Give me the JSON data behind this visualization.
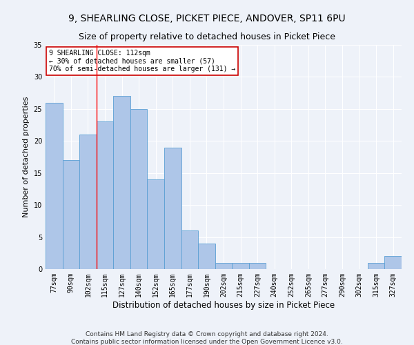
{
  "title1": "9, SHEARLING CLOSE, PICKET PIECE, ANDOVER, SP11 6PU",
  "title2": "Size of property relative to detached houses in Picket Piece",
  "xlabel": "Distribution of detached houses by size in Picket Piece",
  "ylabel": "Number of detached properties",
  "footnote1": "Contains HM Land Registry data © Crown copyright and database right 2024.",
  "footnote2": "Contains public sector information licensed under the Open Government Licence v3.0.",
  "categories": [
    "77sqm",
    "90sqm",
    "102sqm",
    "115sqm",
    "127sqm",
    "140sqm",
    "152sqm",
    "165sqm",
    "177sqm",
    "190sqm",
    "202sqm",
    "215sqm",
    "227sqm",
    "240sqm",
    "252sqm",
    "265sqm",
    "277sqm",
    "290sqm",
    "302sqm",
    "315sqm",
    "327sqm"
  ],
  "values": [
    26,
    17,
    21,
    23,
    27,
    25,
    14,
    19,
    6,
    4,
    1,
    1,
    1,
    0,
    0,
    0,
    0,
    0,
    0,
    1,
    2
  ],
  "bar_color": "#aec6e8",
  "bar_edge_color": "#5a9fd4",
  "red_line_x": 2.5,
  "annotation_text": "9 SHEARLING CLOSE: 112sqm\n← 30% of detached houses are smaller (57)\n70% of semi-detached houses are larger (131) →",
  "annotation_box_color": "#ffffff",
  "annotation_box_edge": "#cc0000",
  "ylim": [
    0,
    35
  ],
  "yticks": [
    0,
    5,
    10,
    15,
    20,
    25,
    30,
    35
  ],
  "bg_color": "#eef2f9",
  "grid_color": "#ffffff",
  "title1_fontsize": 10,
  "title2_fontsize": 9,
  "xlabel_fontsize": 8.5,
  "ylabel_fontsize": 8,
  "tick_fontsize": 7,
  "annotation_fontsize": 7,
  "footnote_fontsize": 6.5
}
